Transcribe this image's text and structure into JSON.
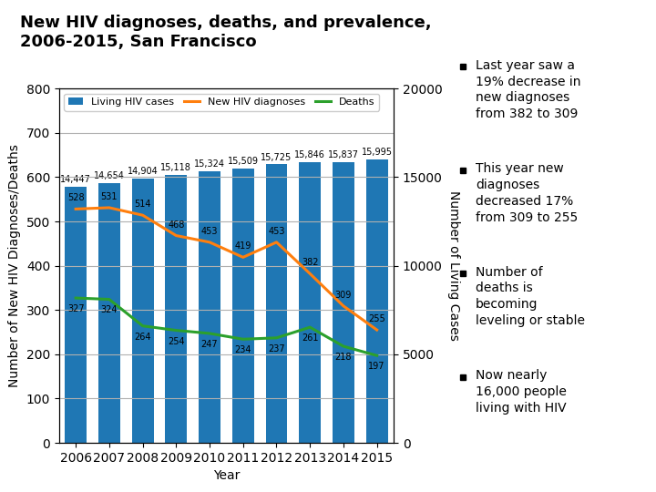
{
  "chart_data": {
    "type": "bar",
    "title": "New HIV diagnoses, deaths, and prevalence,\n2006-2015, San Francisco",
    "xlabel": "Year",
    "ylabel": "Number of New HIV Diagnoses/Deaths",
    "y2label": "Number of Living Cases",
    "x": [
      2006,
      2007,
      2008,
      2009,
      2010,
      2011,
      2012,
      2013,
      2014,
      2015
    ],
    "xlim": [
      2005.5,
      2015.5
    ],
    "xticks": [
      2006,
      2007,
      2008,
      2009,
      2010,
      2011,
      2012,
      2013,
      2014,
      2015
    ],
    "ylim": [
      0,
      800
    ],
    "yticks": [
      0,
      100,
      200,
      300,
      400,
      500,
      600,
      700,
      800
    ],
    "y2lim": [
      0,
      20000
    ],
    "y2ticks": [
      0,
      5000,
      10000,
      15000,
      20000
    ],
    "grid": true,
    "legend": "upper left",
    "data_labels": true,
    "series": [
      {
        "name": "Living HIV cases",
        "type": "bar",
        "axis": "y2",
        "values": [
          14447,
          14654,
          14904,
          15118,
          15324,
          15509,
          15725,
          15846,
          15837,
          15995
        ],
        "value_labels": [
          "14,447",
          "14,654",
          "14,904",
          "15,118",
          "15,324",
          "15,509",
          "15,725",
          "15,846",
          "15,837",
          "15,995"
        ]
      },
      {
        "name": "New HIV diagnoses",
        "type": "line",
        "values": [
          528,
          531,
          514,
          468,
          453,
          419,
          453,
          382,
          309,
          255
        ]
      },
      {
        "name": "Deaths",
        "type": "line",
        "values": [
          327,
          324,
          264,
          254,
          247,
          234,
          237,
          261,
          218,
          197
        ]
      }
    ],
    "annotations": [
      "Last year saw a\n19% decrease in\nnew diagnoses\nfrom 382 to 309",
      "This year new\ndiagnoses\ndecreased 17%\nfrom 309 to 255",
      "Number of\ndeaths is\nbecoming\nleveling or stable",
      "Now nearly\n16,000 people\nliving with HIV"
    ]
  }
}
